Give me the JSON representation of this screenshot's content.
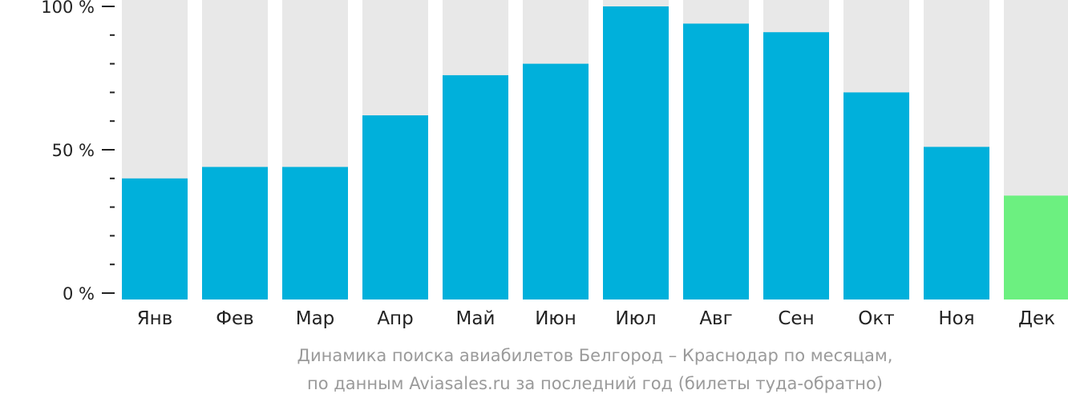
{
  "chart_data": {
    "type": "bar",
    "categories": [
      "Янв",
      "Фев",
      "Мар",
      "Апр",
      "Май",
      "Июн",
      "Июл",
      "Авг",
      "Сен",
      "Окт",
      "Ноя",
      "Дек"
    ],
    "values": [
      40,
      44,
      44,
      62,
      76,
      80,
      100,
      94,
      91,
      70,
      51,
      34
    ],
    "highlight_index": 11,
    "ylim": [
      0,
      100
    ],
    "yticks": [
      "0 %",
      "50 %",
      "100 %"
    ],
    "colors": {
      "bar": "#00b0db",
      "highlight": "#6cf080",
      "track": "#e8e8e8",
      "axis": "#222222"
    }
  },
  "caption": {
    "line1": "Динамика поиска авиабилетов Белгород – Краснодар по месяцам,",
    "line2": "по данным Aviasales.ru за последний год (билеты туда-обратно)"
  }
}
